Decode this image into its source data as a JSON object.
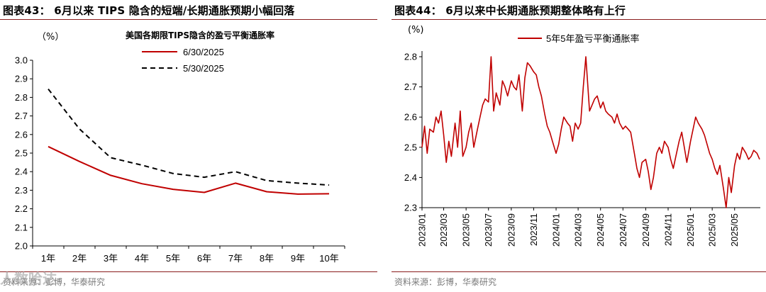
{
  "figures": {
    "left_title": "图表43： 6月以来 TIPS 隐含的短端/长期通胀预期小幅回落",
    "right_title": "图表44： 6月以来中长期通胀预期整体略有上行",
    "left_source": "资料来源：彭博，华泰研究",
    "right_source": "资料来源：彭博，华泰研究",
    "watermark": "人数哈达"
  },
  "colors": {
    "accent": "#c00000",
    "dashed": "#000000",
    "rule": "#8a1c1c"
  },
  "chart_data": [
    {
      "type": "line",
      "title": "美国各期限TIPS隐含的盈亏平衡通胀率",
      "ylabel": "（%）",
      "categories": [
        "1年",
        "2年",
        "3年",
        "4年",
        "5年",
        "6年",
        "7年",
        "8年",
        "9年",
        "10年"
      ],
      "ylim": [
        2.0,
        3.0
      ],
      "yticks": [
        "2.0",
        "2.1",
        "2.2",
        "2.3",
        "2.4",
        "2.5",
        "2.6",
        "2.7",
        "2.8",
        "2.9",
        "3.0"
      ],
      "grid": false,
      "legend_position": "top-center",
      "series": [
        {
          "name": "6/30/2025",
          "style": "solid",
          "color": "#c00000",
          "values": [
            2.535,
            2.455,
            2.38,
            2.335,
            2.305,
            2.288,
            2.338,
            2.292,
            2.279,
            2.281
          ]
        },
        {
          "name": "5/30/2025",
          "style": "dashed",
          "color": "#000000",
          "values": [
            2.845,
            2.63,
            2.475,
            2.435,
            2.39,
            2.37,
            2.4,
            2.352,
            2.338,
            2.328
          ]
        }
      ]
    },
    {
      "type": "line",
      "ylabel": "(%)",
      "ylim": [
        2.3,
        2.8
      ],
      "yticks": [
        "2.3",
        "2.4",
        "2.5",
        "2.6",
        "2.7",
        "2.8"
      ],
      "x_tick_labels": [
        "2023/01",
        "2023/03",
        "2023/05",
        "2023/07",
        "2023/09",
        "2023/11",
        "2024/01",
        "2024/03",
        "2024/05",
        "2024/07",
        "2024/09",
        "2024/11",
        "2025/01",
        "2025/03",
        "2025/05"
      ],
      "x_range": [
        "2023-01-01",
        "2025-07-10"
      ],
      "grid": false,
      "legend_position": "top-left",
      "series": [
        {
          "name": "5年5年盈亏平衡通胀率",
          "color": "#c00000",
          "x": [
            "2023-01-01",
            "2023-01-08",
            "2023-01-15",
            "2023-01-22",
            "2023-02-01",
            "2023-02-08",
            "2023-02-15",
            "2023-02-22",
            "2023-03-01",
            "2023-03-08",
            "2023-03-15",
            "2023-03-22",
            "2023-04-01",
            "2023-04-08",
            "2023-04-15",
            "2023-04-22",
            "2023-05-01",
            "2023-05-08",
            "2023-05-15",
            "2023-05-22",
            "2023-06-01",
            "2023-06-08",
            "2023-06-15",
            "2023-06-22",
            "2023-07-01",
            "2023-07-08",
            "2023-07-15",
            "2023-07-22",
            "2023-08-01",
            "2023-08-08",
            "2023-08-15",
            "2023-08-22",
            "2023-09-01",
            "2023-09-08",
            "2023-09-15",
            "2023-09-22",
            "2023-10-01",
            "2023-10-08",
            "2023-10-15",
            "2023-10-22",
            "2023-11-01",
            "2023-11-08",
            "2023-11-15",
            "2023-11-22",
            "2023-12-01",
            "2023-12-08",
            "2023-12-15",
            "2023-12-22",
            "2024-01-01",
            "2024-01-08",
            "2024-01-15",
            "2024-01-22",
            "2024-02-01",
            "2024-02-08",
            "2024-02-15",
            "2024-02-22",
            "2024-03-01",
            "2024-03-08",
            "2024-03-15",
            "2024-03-22",
            "2024-04-01",
            "2024-04-08",
            "2024-04-15",
            "2024-04-22",
            "2024-05-01",
            "2024-05-08",
            "2024-05-15",
            "2024-05-22",
            "2024-06-01",
            "2024-06-08",
            "2024-06-15",
            "2024-06-22",
            "2024-07-01",
            "2024-07-08",
            "2024-07-15",
            "2024-07-22",
            "2024-08-01",
            "2024-08-08",
            "2024-08-15",
            "2024-08-22",
            "2024-09-01",
            "2024-09-08",
            "2024-09-15",
            "2024-09-22",
            "2024-10-01",
            "2024-10-08",
            "2024-10-15",
            "2024-10-22",
            "2024-11-01",
            "2024-11-08",
            "2024-11-15",
            "2024-11-22",
            "2024-12-01",
            "2024-12-08",
            "2024-12-15",
            "2024-12-22",
            "2025-01-01",
            "2025-01-08",
            "2025-01-15",
            "2025-01-22",
            "2025-02-01",
            "2025-02-08",
            "2025-02-15",
            "2025-02-22",
            "2025-03-01",
            "2025-03-08",
            "2025-03-15",
            "2025-03-22",
            "2025-04-01",
            "2025-04-08",
            "2025-04-15",
            "2025-04-22",
            "2025-05-01",
            "2025-05-08",
            "2025-05-15",
            "2025-05-22",
            "2025-06-01",
            "2025-06-08",
            "2025-06-15",
            "2025-06-22",
            "2025-07-01",
            "2025-07-08"
          ],
          "values": [
            2.5,
            2.57,
            2.48,
            2.56,
            2.55,
            2.6,
            2.58,
            2.62,
            2.54,
            2.45,
            2.52,
            2.47,
            2.58,
            2.5,
            2.62,
            2.47,
            2.5,
            2.55,
            2.58,
            2.5,
            2.56,
            2.6,
            2.64,
            2.66,
            2.65,
            2.8,
            2.62,
            2.68,
            2.64,
            2.72,
            2.7,
            2.67,
            2.72,
            2.7,
            2.69,
            2.74,
            2.62,
            2.73,
            2.78,
            2.77,
            2.75,
            2.74,
            2.7,
            2.67,
            2.61,
            2.57,
            2.55,
            2.52,
            2.48,
            2.51,
            2.56,
            2.6,
            2.58,
            2.57,
            2.52,
            2.58,
            2.56,
            2.58,
            2.7,
            2.8,
            2.62,
            2.64,
            2.66,
            2.67,
            2.63,
            2.65,
            2.62,
            2.61,
            2.6,
            2.58,
            2.61,
            2.58,
            2.56,
            2.57,
            2.56,
            2.55,
            2.48,
            2.43,
            2.4,
            2.45,
            2.46,
            2.42,
            2.36,
            2.4,
            2.48,
            2.5,
            2.48,
            2.52,
            2.5,
            2.46,
            2.43,
            2.47,
            2.52,
            2.55,
            2.5,
            2.45,
            2.52,
            2.56,
            2.6,
            2.58,
            2.56,
            2.54,
            2.51,
            2.48,
            2.46,
            2.43,
            2.41,
            2.44,
            2.36,
            2.3,
            2.4,
            2.35,
            2.44,
            2.48,
            2.46,
            2.5,
            2.48,
            2.46,
            2.47,
            2.49,
            2.48,
            2.46
          ]
        }
      ]
    }
  ]
}
